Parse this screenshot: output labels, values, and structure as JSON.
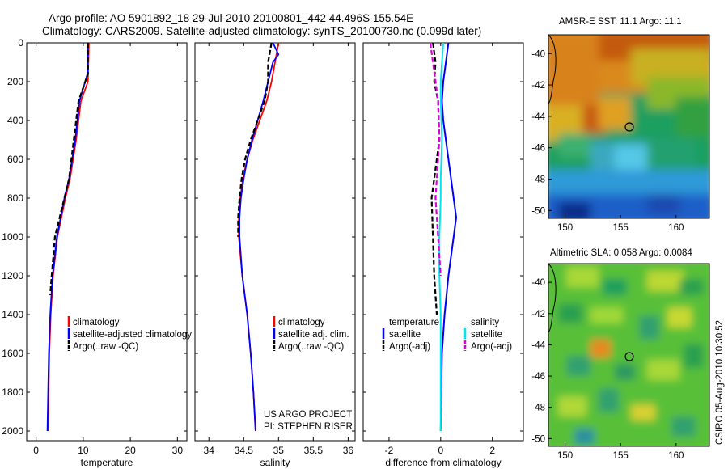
{
  "title": {
    "line1": "Argo profile: AO 5901892_18 29-Jul-2010 20100801_442 44.496S 155.54E",
    "line2": "Climatology: CARS2009. Satellite-adjusted climatology: synTS_20100730.nc (0.099d later)"
  },
  "colors": {
    "climatology": "#ff0000",
    "satellite": "#0000ff",
    "argo": "#000000",
    "salinity_satellite": "#00e5ee",
    "salinity_argo": "#dd00dd"
  },
  "chart_data": [
    {
      "type": "line",
      "name": "temperature-profile",
      "xlabel": "temperature",
      "xlim": [
        -2,
        32
      ],
      "ylim": [
        2050,
        0
      ],
      "xticks": [
        "0",
        "10",
        "20",
        "30"
      ],
      "yticks": [
        "0",
        "200",
        "400",
        "600",
        "800",
        "1000",
        "1200",
        "1400",
        "1600",
        "1800",
        "2000"
      ],
      "legend": [
        "climatology",
        "satellite-adjusted climatology",
        "Argo(..raw -QC)"
      ],
      "series": [
        {
          "name": "climatology",
          "depth": [
            0,
            200,
            300,
            500,
            700,
            800,
            1000,
            1200,
            1400,
            1600,
            2000
          ],
          "values": [
            11.2,
            11.0,
            9.5,
            8.5,
            7.2,
            6.2,
            4.5,
            3.6,
            3.1,
            2.8,
            2.5
          ]
        },
        {
          "name": "satellite-adjusted climatology",
          "depth": [
            0,
            160,
            300,
            500,
            700,
            800,
            1000,
            1200,
            1400,
            1600,
            2000
          ],
          "values": [
            11.0,
            10.9,
            9.2,
            8.3,
            7.0,
            6.0,
            4.4,
            3.5,
            3.0,
            2.7,
            2.4
          ]
        },
        {
          "name": "Argo(..raw -QC)",
          "depth": [
            0,
            160,
            300,
            500,
            700,
            800,
            1000,
            1200,
            1300
          ],
          "values": [
            11.0,
            11.0,
            9.0,
            8.0,
            7.0,
            6.0,
            4.0,
            3.3,
            3.0
          ]
        }
      ]
    },
    {
      "type": "line",
      "name": "salinity-profile",
      "xlabel": "salinity",
      "xlim": [
        33.8,
        36.1
      ],
      "ylim": [
        2050,
        0
      ],
      "xticks": [
        "34",
        "34.5",
        "35",
        "35.5",
        "36"
      ],
      "legend": [
        "climatology",
        "satellite adj. clim.",
        "Argo(..raw -QC)"
      ],
      "annotation": [
        "US ARGO PROJECT",
        "PI: STEPHEN RISER"
      ],
      "series": [
        {
          "name": "climatology",
          "depth": [
            0,
            100,
            200,
            300,
            400,
            500,
            600,
            700,
            800,
            900,
            1000,
            1200,
            1400,
            1600,
            1800,
            2000
          ],
          "values": [
            35.0,
            34.95,
            34.9,
            34.83,
            34.73,
            34.63,
            34.55,
            34.49,
            34.45,
            34.43,
            34.43,
            34.48,
            34.55,
            34.6,
            34.64,
            34.67
          ]
        },
        {
          "name": "satellite adj. clim.",
          "depth": [
            0,
            60,
            100,
            200,
            300,
            400,
            500,
            600,
            700,
            800,
            900,
            1000,
            1200,
            1400,
            1600,
            1800,
            2000
          ],
          "values": [
            34.92,
            35.0,
            34.92,
            34.85,
            34.78,
            34.7,
            34.62,
            34.55,
            34.5,
            34.46,
            34.44,
            34.44,
            34.48,
            34.55,
            34.6,
            34.64,
            34.67
          ]
        },
        {
          "name": "Argo(..raw -QC)",
          "depth": [
            0,
            100,
            200,
            300,
            400,
            500,
            600,
            700,
            800,
            900,
            1000
          ],
          "values": [
            34.9,
            34.85,
            34.85,
            34.8,
            34.7,
            34.6,
            34.52,
            34.47,
            34.44,
            34.42,
            34.42
          ]
        }
      ]
    },
    {
      "type": "line",
      "name": "difference-profile",
      "xlabel": "difference from climatology",
      "xlim": [
        -3,
        3.2
      ],
      "ylim": [
        2050,
        0
      ],
      "xticks": [
        "-2",
        "0",
        "2"
      ],
      "legend_temperature": {
        "title": "temperature",
        "items": [
          "satellite",
          "Argo(-adj)"
        ]
      },
      "legend_salinity": {
        "title": "salinity",
        "items": [
          "satellite",
          "Argo(-adj)"
        ]
      },
      "series": [
        {
          "name": "temperature satellite",
          "depth": [
            0,
            100,
            200,
            300,
            400,
            500,
            600,
            700,
            800,
            900,
            1000,
            1200,
            1400,
            1600,
            2000
          ],
          "values": [
            0.3,
            0.2,
            0.1,
            0.05,
            0.1,
            0.2,
            0.3,
            0.4,
            0.5,
            0.6,
            0.5,
            0.3,
            0.15,
            0.05,
            0.0
          ]
        },
        {
          "name": "temperature Argo(-adj)",
          "depth": [
            0,
            100,
            200,
            300,
            500,
            700,
            800,
            1000,
            1200,
            1400
          ],
          "values": [
            -0.3,
            -0.2,
            -0.25,
            -0.1,
            -0.05,
            -0.25,
            -0.35,
            -0.3,
            -0.25,
            -0.15
          ]
        },
        {
          "name": "salinity satellite",
          "depth": [
            0,
            100,
            200,
            300,
            500,
            700,
            800,
            1000,
            1200,
            1400,
            1600,
            2000
          ],
          "values": [
            0.1,
            0.05,
            0.0,
            0.0,
            0.05,
            0.0,
            0.0,
            -0.05,
            -0.05,
            0.0,
            0.0,
            0.0
          ]
        },
        {
          "name": "salinity Argo(-adj)",
          "depth": [
            0,
            100,
            200,
            300,
            500,
            700,
            800,
            1000,
            1200
          ],
          "values": [
            -0.4,
            -0.3,
            -0.2,
            -0.1,
            -0.05,
            -0.15,
            -0.2,
            -0.1,
            0.0
          ]
        }
      ]
    },
    {
      "type": "heatmap",
      "name": "sst-map",
      "title": "AMSR-E SST: 11.1 Argo: 11.1",
      "xlim": [
        148.5,
        163
      ],
      "ylim": [
        -50.5,
        -38.8
      ],
      "xticks": [
        "150",
        "155",
        "160"
      ],
      "yticks": [
        "-40",
        "-42",
        "-44",
        "-46",
        "-48",
        "-50"
      ],
      "marker": {
        "lon": 155.54,
        "lat": -44.496
      }
    },
    {
      "type": "heatmap",
      "name": "sla-map",
      "title": "Altimetric SLA: 0.058 Argo: 0.0084",
      "xlim": [
        148.5,
        163
      ],
      "ylim": [
        -50.5,
        -38.8
      ],
      "xticks": [
        "150",
        "155",
        "160"
      ],
      "yticks": [
        "-40",
        "-42",
        "-44",
        "-46",
        "-48",
        "-50"
      ],
      "marker": {
        "lon": 155.54,
        "lat": -44.496
      }
    }
  ],
  "footer": {
    "side_label": "CSIRO 05-Aug-2010 10:30:52"
  }
}
